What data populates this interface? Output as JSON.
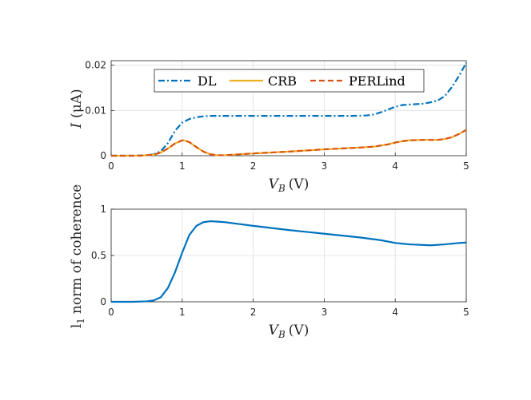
{
  "colors": {
    "dl": "#0072BD",
    "crb": "#EDB120",
    "perlind": "#D95319",
    "axis": "#262626",
    "grid": "#dfdfdf"
  },
  "chart_data": [
    {
      "type": "line",
      "title": "",
      "xlabel": {
        "var": "V",
        "sub": "B",
        "unit": "(V)"
      },
      "ylabel": {
        "var": "I",
        "unit": "(μA)"
      },
      "xlim": [
        0,
        5
      ],
      "ylim": [
        0,
        0.021
      ],
      "xticks": [
        "0",
        "1",
        "2",
        "3",
        "4",
        "5"
      ],
      "yticks": [
        "0",
        "0.01",
        "0.02"
      ],
      "grid": true,
      "legend": {
        "placement": "top",
        "orientation": "horizontal"
      },
      "series": [
        {
          "name": "DL",
          "style": "dashdot",
          "x": [
            0,
            0.3,
            0.5,
            0.6,
            0.7,
            0.8,
            0.9,
            1.0,
            1.1,
            1.2,
            1.3,
            1.4,
            1.5,
            1.6,
            2.0,
            2.5,
            3.0,
            3.4,
            3.6,
            3.7,
            3.8,
            3.9,
            4.0,
            4.1,
            4.2,
            4.3,
            4.4,
            4.5,
            4.6,
            4.7,
            4.8,
            4.9,
            5.0
          ],
          "y": [
            0,
            0,
            0.0001,
            0.0003,
            0.001,
            0.0028,
            0.0055,
            0.0073,
            0.0081,
            0.0085,
            0.0087,
            0.0088,
            0.0088,
            0.0088,
            0.0088,
            0.0088,
            0.0088,
            0.0088,
            0.0089,
            0.0091,
            0.0096,
            0.0102,
            0.0108,
            0.0112,
            0.0113,
            0.0114,
            0.0115,
            0.0118,
            0.0122,
            0.0132,
            0.0152,
            0.0177,
            0.0205
          ]
        },
        {
          "name": "CRB",
          "style": "solid",
          "x": [
            0,
            0.4,
            0.6,
            0.7,
            0.8,
            0.9,
            1.0,
            1.05,
            1.1,
            1.2,
            1.3,
            1.4,
            1.5,
            1.6,
            1.8,
            2.0,
            2.5,
            3.0,
            3.5,
            3.7,
            3.9,
            4.0,
            4.1,
            4.2,
            4.4,
            4.6,
            4.7,
            4.8,
            4.9,
            5.0
          ],
          "y": [
            0,
            0,
            0.0002,
            0.0007,
            0.0016,
            0.0027,
            0.0034,
            0.0033,
            0.003,
            0.0019,
            0.0009,
            0.0003,
            0.0001,
            0.0001,
            0.0003,
            0.0005,
            0.0009,
            0.0014,
            0.0018,
            0.002,
            0.0025,
            0.0029,
            0.0032,
            0.0034,
            0.0035,
            0.0035,
            0.0037,
            0.0041,
            0.0048,
            0.0057
          ]
        },
        {
          "name": "PERLind",
          "style": "dashed",
          "x": [
            0,
            0.4,
            0.6,
            0.7,
            0.8,
            0.9,
            1.0,
            1.05,
            1.1,
            1.2,
            1.3,
            1.4,
            1.5,
            1.6,
            1.8,
            2.0,
            2.5,
            3.0,
            3.5,
            3.7,
            3.9,
            4.0,
            4.1,
            4.2,
            4.4,
            4.6,
            4.7,
            4.8,
            4.9,
            5.0
          ],
          "y": [
            0,
            0,
            0.0002,
            0.0007,
            0.0016,
            0.0027,
            0.0034,
            0.0033,
            0.003,
            0.0019,
            0.0009,
            0.0003,
            0.0001,
            0.0001,
            0.0003,
            0.0005,
            0.0009,
            0.0014,
            0.0018,
            0.002,
            0.0025,
            0.0029,
            0.0032,
            0.0034,
            0.0035,
            0.0035,
            0.0037,
            0.0041,
            0.0048,
            0.0057
          ]
        }
      ]
    },
    {
      "type": "line",
      "title": "",
      "xlabel": {
        "var": "V",
        "sub": "B",
        "unit": "(V)"
      },
      "ylabel": {
        "text": "l",
        "sub": "1",
        "rest": "norm of coherence"
      },
      "xlim": [
        0,
        5
      ],
      "ylim": [
        0,
        1
      ],
      "xticks": [
        "0",
        "1",
        "2",
        "3",
        "4",
        "5"
      ],
      "yticks": [
        "0",
        "0.5",
        "1"
      ],
      "grid": true,
      "series": [
        {
          "style": "solid",
          "x": [
            0,
            0.3,
            0.5,
            0.6,
            0.7,
            0.8,
            0.9,
            1.0,
            1.1,
            1.2,
            1.3,
            1.4,
            1.5,
            1.6,
            1.8,
            2.0,
            2.5,
            3.0,
            3.5,
            3.8,
            4.0,
            4.2,
            4.5,
            4.7,
            4.9,
            5.0
          ],
          "y": [
            0,
            0,
            0.005,
            0.015,
            0.05,
            0.15,
            0.32,
            0.53,
            0.72,
            0.82,
            0.86,
            0.87,
            0.865,
            0.86,
            0.84,
            0.82,
            0.775,
            0.735,
            0.695,
            0.665,
            0.635,
            0.62,
            0.61,
            0.62,
            0.635,
            0.64
          ]
        }
      ]
    }
  ]
}
